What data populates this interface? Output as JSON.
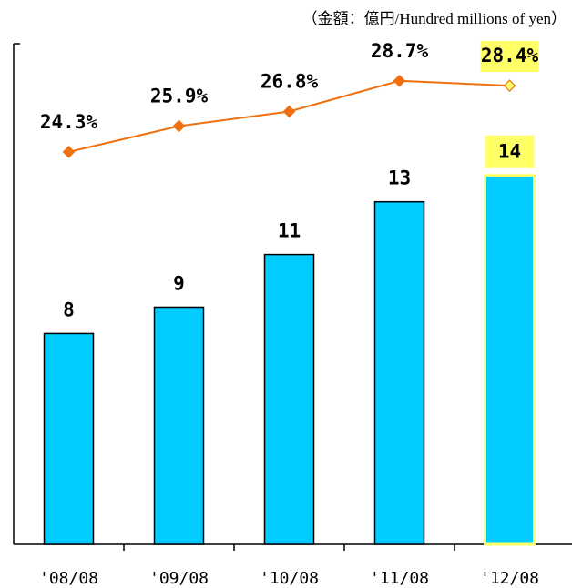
{
  "chart_data": {
    "type": "bar",
    "subtitle": "（金額：億円/Hundred millions of yen）",
    "categories": [
      "'08/08",
      "'09/08",
      "'10/08",
      "'11/08",
      "'12/08"
    ],
    "series": [
      {
        "type": "bar",
        "color": "#00ccff",
        "values": [
          8,
          9,
          11,
          13,
          14
        ]
      },
      {
        "type": "line",
        "axis": "y2",
        "color": "#f07010",
        "values": [
          24.3,
          25.9,
          26.8,
          28.7,
          28.4
        ],
        "value_labels": [
          "24.3%",
          "25.9%",
          "26.8%",
          "28.7%",
          "28.4%"
        ]
      }
    ],
    "ylim": [
      0,
      19
    ],
    "y2lim": [
      0,
      31
    ],
    "highlight_index": 4,
    "highlight_color": "#ffff66"
  }
}
